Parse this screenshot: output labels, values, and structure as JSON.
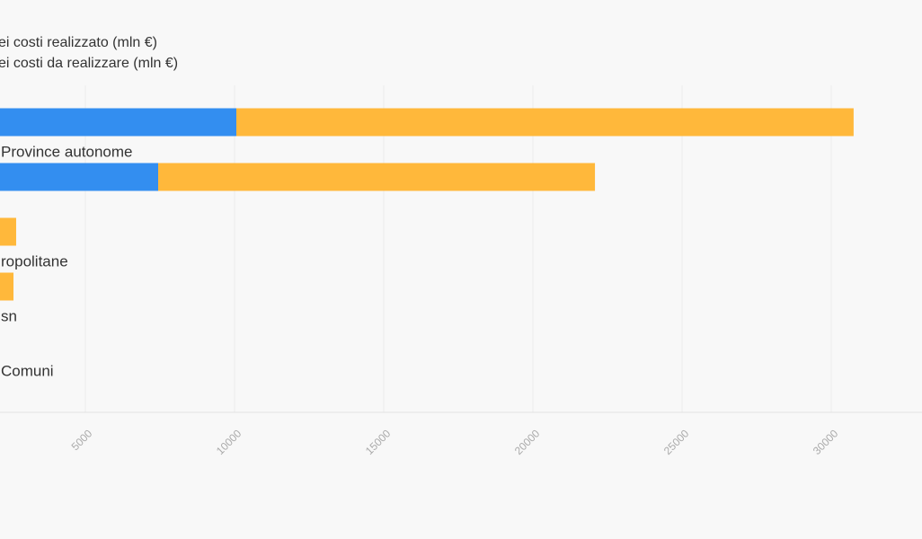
{
  "chart_data": {
    "type": "stacked-bar-horizontal",
    "categories": [
      null,
      "Province autonome",
      null,
      "ropolitane",
      "sn",
      "Comuni"
    ],
    "series": [
      {
        "name": "ei costi realizzato (mln €)",
        "color": "#338ef0",
        "values": [
          10060,
          7440,
          0,
          0,
          0,
          0
        ]
      },
      {
        "name": "ei costi da realizzare (mln €)",
        "color": "#ffb83b",
        "values": [
          20690,
          14640,
          2680,
          2590,
          0,
          0
        ]
      }
    ],
    "xlim": [
      0,
      33000
    ],
    "xticks": [
      5000,
      10000,
      15000,
      20000,
      25000,
      30000
    ],
    "grid": true
  }
}
